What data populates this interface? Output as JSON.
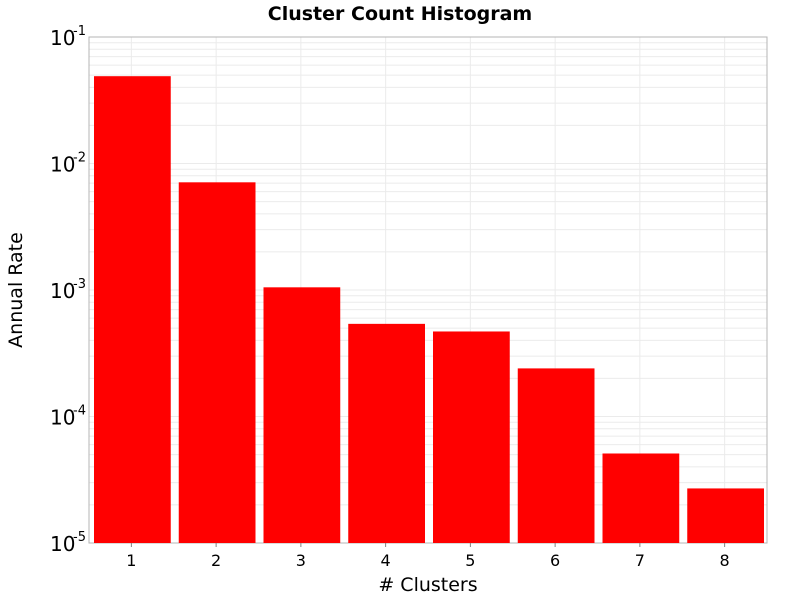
{
  "chart_data": {
    "type": "bar",
    "title": "Cluster Count Histogram",
    "xlabel": "# Clusters",
    "ylabel": "Annual Rate",
    "y_scale": "log",
    "ylim": [
      1e-05,
      0.1
    ],
    "categories": [
      "1",
      "2",
      "3",
      "4",
      "5",
      "6",
      "7",
      "8"
    ],
    "values": [
      0.049,
      0.0071,
      0.00105,
      0.00054,
      0.00047,
      0.00024,
      5.1e-05,
      2.7e-05
    ],
    "y_tick_values": [
      1e-05,
      0.0001,
      0.001,
      0.01,
      0.1
    ],
    "y_ticks": [
      {
        "base": "10",
        "exp": "-5"
      },
      {
        "base": "10",
        "exp": "-4"
      },
      {
        "base": "10",
        "exp": "-3"
      },
      {
        "base": "10",
        "exp": "-2"
      },
      {
        "base": "10",
        "exp": "-1"
      }
    ],
    "bar_color": "#ff0000",
    "grid": true,
    "grid_color": "#ebebeb",
    "legend": false
  }
}
